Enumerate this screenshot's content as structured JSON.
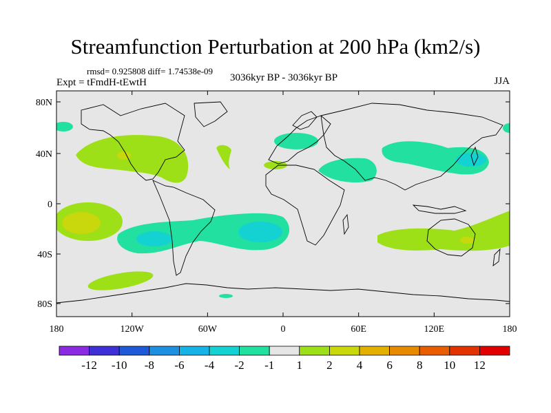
{
  "title": "Streamfunction Perturbation at 200 hPa (km2/s)",
  "stats": "rmsd= 0.925808 diff= 1.74538e-09",
  "left_label": "Expt = tFmdH-tEwtH",
  "center_label": "3036kyr BP - 3036kyr BP",
  "right_label": "JJA",
  "lat_labels": [
    "80N",
    "40N",
    "0",
    "40S",
    "80S"
  ],
  "lat_values": [
    80,
    40,
    0,
    -40,
    -80
  ],
  "lon_labels": [
    "180",
    "120W",
    "60W",
    "0",
    "60E",
    "120E",
    "180"
  ],
  "lon_values": [
    -180,
    -120,
    -60,
    0,
    60,
    120,
    180
  ],
  "colorbar": {
    "labels": [
      "-12",
      "-10",
      "-8",
      "-6",
      "-4",
      "-2",
      "-1",
      "1",
      "2",
      "4",
      "6",
      "8",
      "10",
      "12"
    ],
    "colors": [
      "#8a2be2",
      "#3f2fd6",
      "#1e5ad8",
      "#1f8fe0",
      "#17b2e6",
      "#14d2d2",
      "#22e0a0",
      "#e6e6e6",
      "#9ee018",
      "#c8d80c",
      "#e3b000",
      "#e88a00",
      "#e85d00",
      "#e23200",
      "#e00000"
    ]
  },
  "colors": {
    "background_field": "#e6e6e6",
    "coast": "#000000"
  }
}
